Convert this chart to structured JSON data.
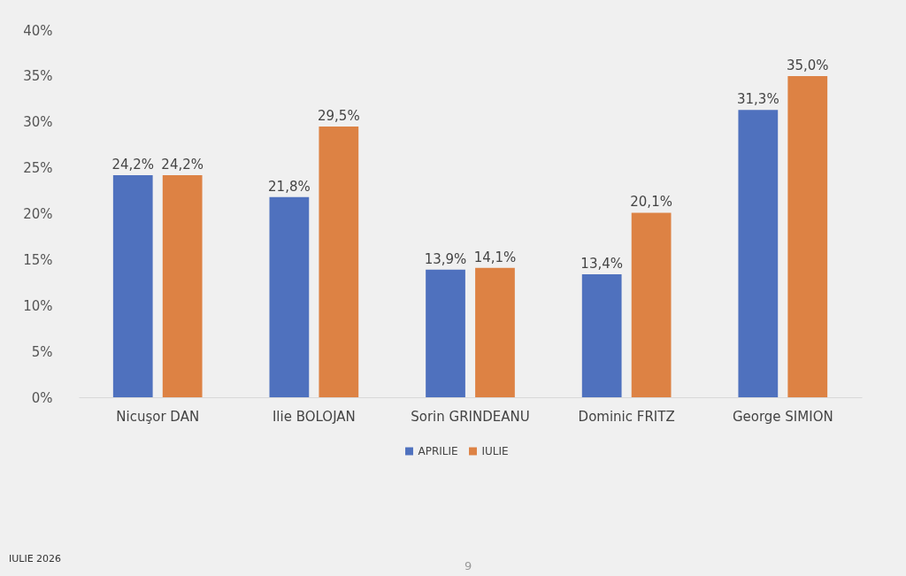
{
  "chart_data": {
    "type": "bar",
    "categories": [
      "Nicuşor DAN",
      "Ilie BOLOJAN",
      "Sorin GRINDEANU",
      "Dominic FRITZ",
      "George SIMION"
    ],
    "series": [
      {
        "name": "APRILIE",
        "color": "#4f71be",
        "values": [
          24.2,
          21.8,
          13.9,
          13.4,
          31.3
        ],
        "value_labels": [
          "24,2%",
          "21,8%",
          "13,9%",
          "13,4%",
          "31,3%"
        ]
      },
      {
        "name": "IULIE",
        "color": "#dd8244",
        "values": [
          24.2,
          29.5,
          14.1,
          20.1,
          35.0
        ],
        "value_labels": [
          "24,2%",
          "29,5%",
          "14,1%",
          "20,1%",
          "35,0%"
        ]
      }
    ],
    "ylim": [
      0,
      40
    ],
    "yticks": [
      {
        "value": 0,
        "label": "0%"
      },
      {
        "value": 5,
        "label": "5%"
      },
      {
        "value": 10,
        "label": "10%"
      },
      {
        "value": 15,
        "label": "15%"
      },
      {
        "value": 20,
        "label": "20%"
      },
      {
        "value": 25,
        "label": "25%"
      },
      {
        "value": 30,
        "label": "30%"
      },
      {
        "value": 35,
        "label": "35%"
      },
      {
        "value": 40,
        "label": "40%"
      }
    ],
    "grid": false,
    "legend": "bottom",
    "annotations": [
      "IULIE 2026",
      "9"
    ]
  }
}
